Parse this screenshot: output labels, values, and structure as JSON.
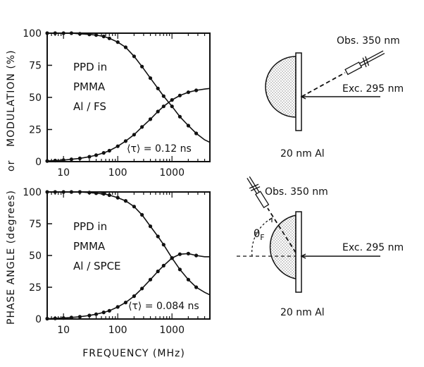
{
  "y_axis_label_1": "PHASE ANGLE (degrees)",
  "y_axis_label_or": "or",
  "y_axis_label_2": "MODULATION (%)",
  "x_axis_label": "FREQUENCY (MHz)",
  "chart_data": [
    {
      "type": "line",
      "xscale": "log",
      "xlim": [
        5,
        5000
      ],
      "ylim": [
        0,
        100
      ],
      "x_ticks": [
        "10",
        "100",
        "1000"
      ],
      "y_ticks": [
        "0",
        "25",
        "50",
        "75",
        "100"
      ],
      "annotation_lines": [
        "PPD in",
        "PMMA",
        "Al / FS"
      ],
      "lifetime_label": "⟨τ⟩ = 0.12 ns",
      "series": [
        {
          "x": [
            5,
            7,
            10,
            14,
            20,
            30,
            40,
            55,
            70,
            100,
            140,
            200,
            280,
            400,
            550,
            700,
            1000,
            1400,
            2000,
            2800,
            4000,
            5000
          ],
          "values": [
            100,
            100,
            100,
            100,
            99.5,
            99,
            98.5,
            97.5,
            96,
            93,
            89,
            82,
            74,
            65,
            57,
            51,
            43,
            35,
            28,
            22,
            17,
            15
          ]
        },
        {
          "x": [
            5,
            7,
            10,
            14,
            20,
            30,
            40,
            55,
            70,
            100,
            140,
            200,
            280,
            400,
            550,
            700,
            1000,
            1400,
            2000,
            2800,
            4000,
            5000
          ],
          "values": [
            0.5,
            0.8,
            1.2,
            1.8,
            2.5,
            3.8,
            5,
            6.8,
            8.5,
            12,
            16,
            21,
            27,
            33,
            39,
            43,
            48,
            51.5,
            54,
            55.5,
            56.5,
            57
          ]
        }
      ]
    },
    {
      "type": "line",
      "xscale": "log",
      "xlim": [
        5,
        5000
      ],
      "ylim": [
        0,
        100
      ],
      "x_ticks": [
        "10",
        "100",
        "1000"
      ],
      "y_ticks": [
        "0",
        "25",
        "50",
        "75",
        "100"
      ],
      "annotation_lines": [
        "PPD in",
        "PMMA",
        "Al / SPCE"
      ],
      "lifetime_label": "⟨τ⟩ = 0.084 ns",
      "series": [
        {
          "x": [
            5,
            7,
            10,
            14,
            20,
            30,
            40,
            55,
            70,
            100,
            140,
            200,
            280,
            400,
            550,
            700,
            1000,
            1400,
            2000,
            2800,
            4000,
            5000
          ],
          "values": [
            100,
            100,
            100,
            100,
            100,
            99.5,
            99,
            98.5,
            97.5,
            95.5,
            93,
            88.5,
            82,
            73,
            65,
            58.5,
            48,
            39,
            31,
            25,
            21,
            19
          ]
        },
        {
          "x": [
            5,
            7,
            10,
            14,
            20,
            30,
            40,
            55,
            70,
            100,
            140,
            200,
            280,
            400,
            550,
            700,
            1000,
            1400,
            2000,
            2800,
            4000,
            5000
          ],
          "values": [
            0.3,
            0.5,
            0.8,
            1.2,
            1.8,
            2.8,
            3.8,
            5.2,
            6.5,
            9.5,
            13,
            18,
            24,
            31,
            37.5,
            42,
            48,
            51,
            51.5,
            50,
            49,
            49
          ]
        }
      ]
    }
  ],
  "diagram_top": {
    "obs_label": "Obs. 350 nm",
    "exc_label": "Exc. 295 nm",
    "film_label": "20 nm Al"
  },
  "diagram_bottom": {
    "obs_label": "Obs. 350 nm",
    "exc_label": "Exc. 295 nm",
    "film_label": "20 nm Al",
    "angle_label": "θ",
    "angle_sub": "F"
  }
}
